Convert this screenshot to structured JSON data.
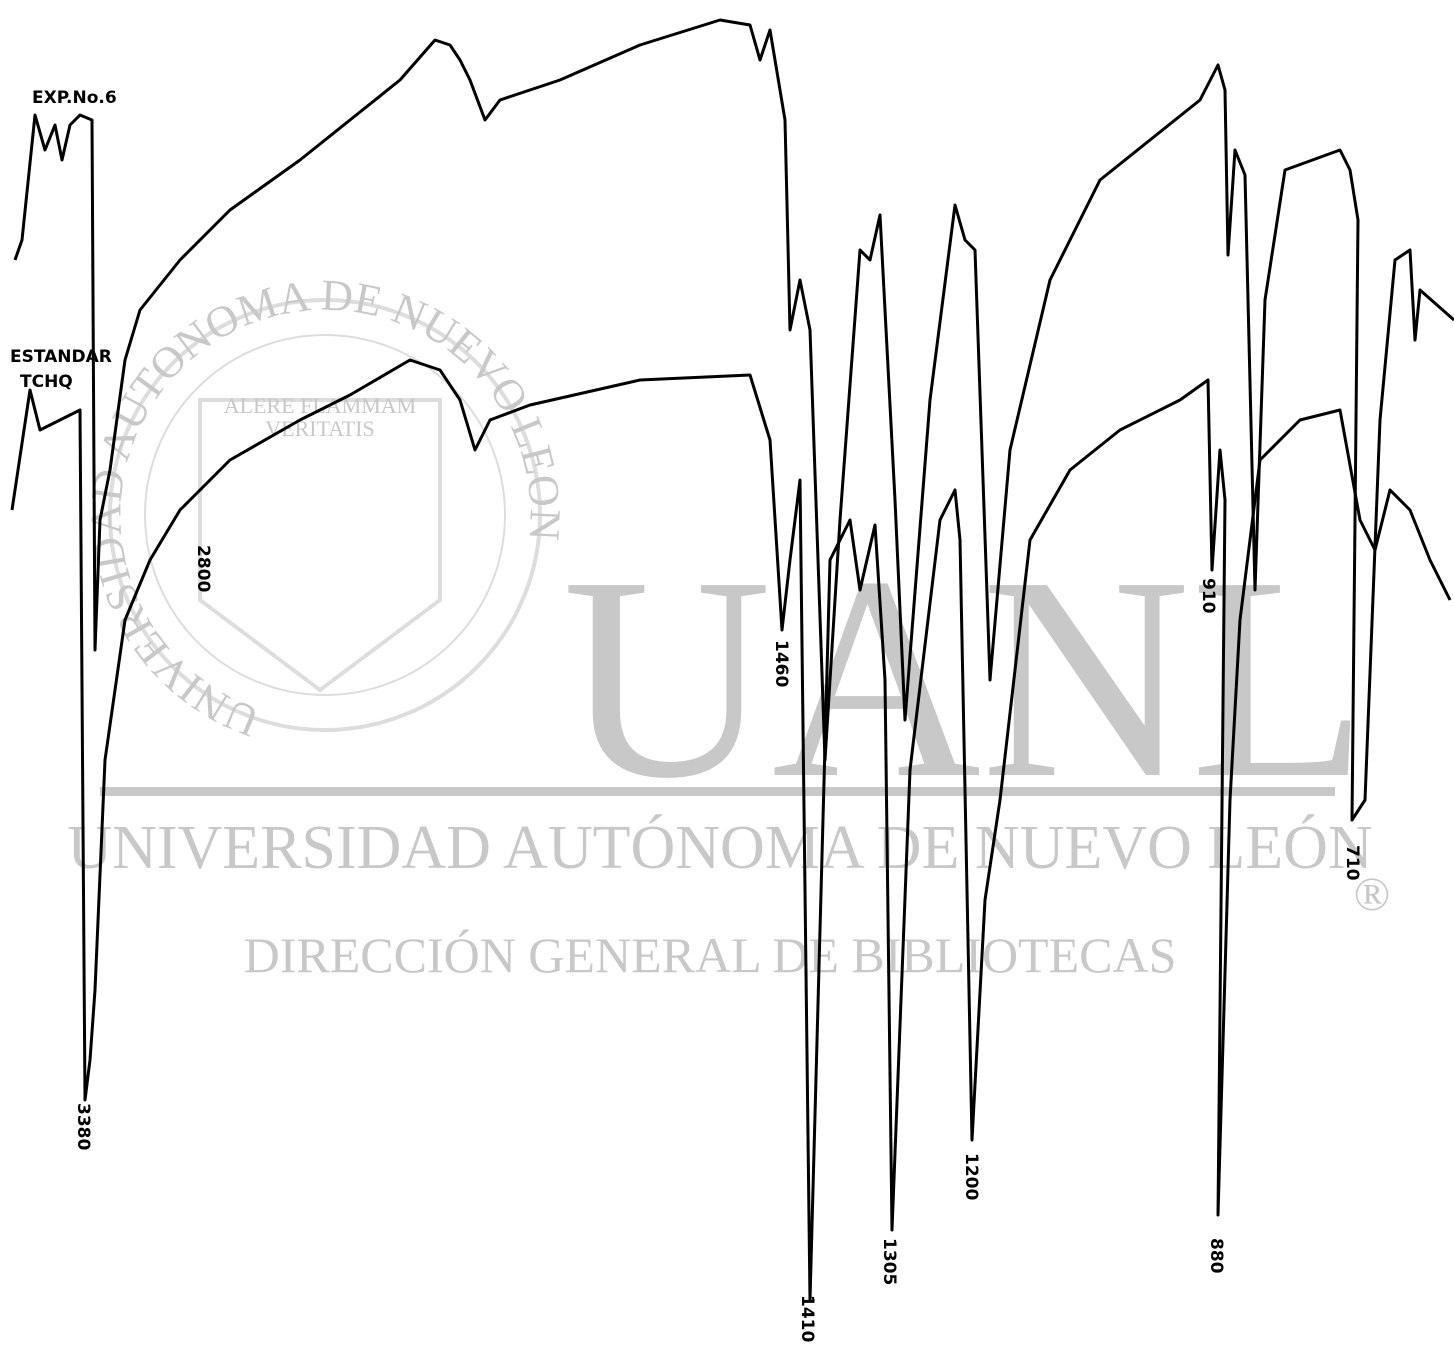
{
  "labels": {
    "sample": "EXP.No.6",
    "standard_1": "ESTANDAR",
    "standard_2": "TCHQ"
  },
  "peaks": [
    "3380",
    "2800",
    "1460",
    "1410",
    "1305",
    "1200",
    "910",
    "880",
    "710"
  ],
  "watermark": {
    "logo": "UANL",
    "university": "UNIVERSIDAD AUTÓNOMA DE NUEVO LEÓN",
    "library": "DIRECCIÓN GENERAL DE BIBLIOTECAS",
    "registered": "®",
    "seal_ring": "UNIVERSIDAD AUTONOMA DE NUEVO LEON",
    "motto_1": "ALERE FLAMMAM",
    "motto_2": "VERITATIS"
  }
}
